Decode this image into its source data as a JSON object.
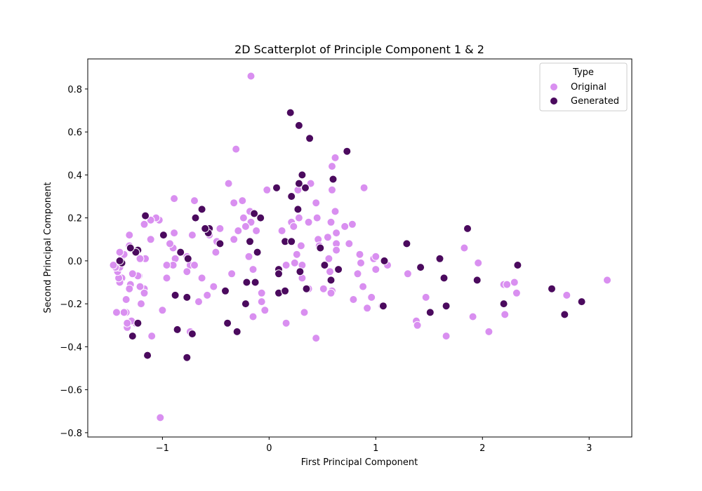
{
  "colors": {
    "original": "#d98ff0",
    "generated": "#4b0a5e"
  },
  "chart_data": {
    "type": "scatter",
    "title": "2D Scatterplot of Principle Component 1 & 2",
    "xlabel": "First Principal Component",
    "ylabel": "Second Principal Component",
    "xlim": [
      -1.7,
      3.4
    ],
    "ylim": [
      -0.82,
      0.94
    ],
    "xticks": [
      -1,
      0,
      1,
      2,
      3
    ],
    "xtick_labels": [
      "−1",
      "0",
      "1",
      "2",
      "3"
    ],
    "yticks": [
      -0.8,
      -0.6,
      -0.4,
      -0.2,
      0.0,
      0.2,
      0.4,
      0.6,
      0.8
    ],
    "ytick_labels": [
      "−0.8",
      "−0.6",
      "−0.4",
      "−0.2",
      "0.0",
      "0.2",
      "0.4",
      "0.6",
      "0.8"
    ],
    "grid": false,
    "legend": {
      "title": "Type",
      "placement": "top-right",
      "entries": [
        "Original",
        "Generated"
      ]
    },
    "series": [
      {
        "name": "Original",
        "points": [
          [
            -0.17,
            0.86
          ],
          [
            -0.31,
            0.52
          ],
          [
            -0.38,
            0.36
          ],
          [
            -0.33,
            0.27
          ],
          [
            -0.25,
            0.28
          ],
          [
            -0.18,
            0.23
          ],
          [
            -0.24,
            0.2
          ],
          [
            -0.17,
            0.18
          ],
          [
            -0.22,
            0.16
          ],
          [
            -0.12,
            0.14
          ],
          [
            -0.29,
            0.14
          ],
          [
            -0.33,
            0.1
          ],
          [
            -0.19,
            0.02
          ],
          [
            -0.15,
            -0.04
          ],
          [
            -0.07,
            -0.15
          ],
          [
            -0.07,
            -0.19
          ],
          [
            -0.15,
            -0.26
          ],
          [
            -0.04,
            -0.23
          ],
          [
            -0.35,
            -0.06
          ],
          [
            -0.46,
            0.15
          ],
          [
            -0.5,
            0.04
          ],
          [
            -0.52,
            -0.12
          ],
          [
            -0.58,
            -0.16
          ],
          [
            -0.63,
            -0.08
          ],
          [
            -0.66,
            -0.19
          ],
          [
            -0.49,
            0.09
          ],
          [
            -0.56,
            0.12
          ],
          [
            -0.7,
            0.28
          ],
          [
            -0.72,
            0.12
          ],
          [
            -0.74,
            -0.02
          ],
          [
            -0.7,
            -0.02
          ],
          [
            -0.77,
            0.02
          ],
          [
            -0.77,
            -0.05
          ],
          [
            -0.74,
            -0.33
          ],
          [
            -0.89,
            0.29
          ],
          [
            -0.89,
            0.13
          ],
          [
            -0.9,
            0.06
          ],
          [
            -0.88,
            0.01
          ],
          [
            -0.9,
            -0.02
          ],
          [
            -0.96,
            -0.02
          ],
          [
            -0.96,
            -0.08
          ],
          [
            -0.93,
            0.08
          ],
          [
            -1.0,
            -0.23
          ],
          [
            -1.02,
            -0.73
          ],
          [
            -1.03,
            0.19
          ],
          [
            -1.06,
            0.2
          ],
          [
            -1.11,
            0.19
          ],
          [
            -1.11,
            0.1
          ],
          [
            -1.1,
            -0.35
          ],
          [
            -1.16,
            0.01
          ],
          [
            -1.17,
            -0.13
          ],
          [
            -1.17,
            -0.15
          ],
          [
            -1.17,
            0.17
          ],
          [
            -1.2,
            -0.2
          ],
          [
            -1.21,
            -0.12
          ],
          [
            -1.22,
            -0.07
          ],
          [
            -1.21,
            0.01
          ],
          [
            -1.23,
            -0.07
          ],
          [
            -1.25,
            -0.29
          ],
          [
            -1.29,
            -0.28
          ],
          [
            -1.28,
            -0.06
          ],
          [
            -1.3,
            -0.11
          ],
          [
            -1.31,
            -0.13
          ],
          [
            -1.31,
            0.07
          ],
          [
            -1.31,
            0.12
          ],
          [
            -1.33,
            -0.31
          ],
          [
            -1.33,
            -0.29
          ],
          [
            -1.34,
            -0.24
          ],
          [
            -1.36,
            -0.24
          ],
          [
            -1.34,
            -0.18
          ],
          [
            -1.38,
            -0.08
          ],
          [
            -1.4,
            -0.1
          ],
          [
            -1.41,
            -0.08
          ],
          [
            -1.43,
            -0.24
          ],
          [
            -1.38,
            0.02
          ],
          [
            -1.36,
            0.03
          ],
          [
            -1.4,
            0.04
          ],
          [
            -1.42,
            -0.05
          ],
          [
            -1.4,
            -0.03
          ],
          [
            -1.44,
            -0.03
          ],
          [
            -1.46,
            -0.02
          ],
          [
            -0.02,
            0.33
          ],
          [
            0.12,
            0.14
          ],
          [
            0.16,
            -0.02
          ],
          [
            0.16,
            -0.29
          ],
          [
            0.21,
            0.18
          ],
          [
            0.23,
            0.16
          ],
          [
            0.27,
            0.33
          ],
          [
            0.28,
            0.2
          ],
          [
            0.26,
            0.03
          ],
          [
            0.24,
            -0.01
          ],
          [
            0.3,
            0.07
          ],
          [
            0.31,
            -0.02
          ],
          [
            0.31,
            -0.08
          ],
          [
            0.33,
            -0.24
          ],
          [
            0.37,
            -0.13
          ],
          [
            0.37,
            0.18
          ],
          [
            0.39,
            0.36
          ],
          [
            0.44,
            0.27
          ],
          [
            0.45,
            0.2
          ],
          [
            0.46,
            0.1
          ],
          [
            0.47,
            0.07
          ],
          [
            0.44,
            -0.36
          ],
          [
            0.51,
            -0.13
          ],
          [
            0.55,
            0.11
          ],
          [
            0.56,
            0.01
          ],
          [
            0.57,
            -0.05
          ],
          [
            0.59,
            -0.14
          ],
          [
            0.58,
            -0.15
          ],
          [
            0.58,
            0.18
          ],
          [
            0.59,
            0.44
          ],
          [
            0.59,
            0.33
          ],
          [
            0.62,
            0.48
          ],
          [
            0.62,
            0.23
          ],
          [
            0.63,
            0.13
          ],
          [
            0.63,
            0.08
          ],
          [
            0.63,
            0.05
          ],
          [
            0.71,
            0.16
          ],
          [
            0.75,
            0.08
          ],
          [
            0.78,
            0.17
          ],
          [
            0.79,
            -0.18
          ],
          [
            0.83,
            -0.06
          ],
          [
            0.85,
            0.03
          ],
          [
            0.86,
            -0.01
          ],
          [
            0.88,
            -0.12
          ],
          [
            0.89,
            0.34
          ],
          [
            0.92,
            -0.22
          ],
          [
            0.96,
            -0.17
          ],
          [
            0.98,
            0.01
          ],
          [
            1.0,
            0.02
          ],
          [
            1.0,
            -0.04
          ],
          [
            1.06,
            -0.21
          ],
          [
            1.11,
            -0.02
          ],
          [
            1.3,
            -0.06
          ],
          [
            1.38,
            -0.28
          ],
          [
            1.39,
            -0.3
          ],
          [
            1.47,
            -0.17
          ],
          [
            1.66,
            -0.35
          ],
          [
            1.83,
            0.06
          ],
          [
            1.91,
            -0.26
          ],
          [
            1.96,
            -0.01
          ],
          [
            2.06,
            -0.33
          ],
          [
            2.2,
            -0.11
          ],
          [
            2.21,
            -0.25
          ],
          [
            2.23,
            -0.11
          ],
          [
            2.3,
            -0.1
          ],
          [
            2.32,
            -0.15
          ],
          [
            2.79,
            -0.16
          ],
          [
            3.17,
            -0.09
          ]
        ]
      },
      {
        "name": "Generated",
        "points": [
          [
            0.2,
            0.69
          ],
          [
            0.28,
            0.63
          ],
          [
            0.38,
            0.57
          ],
          [
            0.73,
            0.51
          ],
          [
            0.31,
            0.4
          ],
          [
            0.28,
            0.36
          ],
          [
            0.34,
            0.34
          ],
          [
            0.07,
            0.34
          ],
          [
            0.21,
            0.3
          ],
          [
            0.27,
            0.24
          ],
          [
            0.6,
            0.38
          ],
          [
            -0.14,
            0.22
          ],
          [
            -0.08,
            0.2
          ],
          [
            -0.18,
            0.09
          ],
          [
            -0.11,
            0.04
          ],
          [
            -0.21,
            -0.1
          ],
          [
            -0.13,
            -0.1
          ],
          [
            -0.22,
            -0.2
          ],
          [
            -0.3,
            -0.33
          ],
          [
            -0.39,
            -0.29
          ],
          [
            -0.41,
            -0.14
          ],
          [
            -0.46,
            0.08
          ],
          [
            -0.56,
            0.15
          ],
          [
            -0.57,
            0.13
          ],
          [
            -0.6,
            0.15
          ],
          [
            -0.63,
            0.24
          ],
          [
            -0.69,
            0.2
          ],
          [
            -0.72,
            -0.34
          ],
          [
            -0.77,
            -0.17
          ],
          [
            -0.76,
            0.01
          ],
          [
            -0.77,
            -0.45
          ],
          [
            -0.83,
            0.04
          ],
          [
            -0.86,
            -0.32
          ],
          [
            -0.88,
            -0.16
          ],
          [
            -0.99,
            0.12
          ],
          [
            -1.14,
            -0.44
          ],
          [
            -1.16,
            0.21
          ],
          [
            -1.23,
            0.05
          ],
          [
            -1.25,
            0.04
          ],
          [
            -1.3,
            0.06
          ],
          [
            -1.23,
            -0.29
          ],
          [
            -1.28,
            -0.35
          ],
          [
            -1.38,
            -0.01
          ],
          [
            -1.4,
            0.0
          ],
          [
            0.09,
            -0.04
          ],
          [
            0.09,
            -0.06
          ],
          [
            0.09,
            -0.15
          ],
          [
            0.15,
            -0.14
          ],
          [
            0.15,
            0.09
          ],
          [
            0.21,
            0.09
          ],
          [
            0.29,
            -0.05
          ],
          [
            0.35,
            -0.13
          ],
          [
            0.48,
            0.06
          ],
          [
            0.52,
            -0.02
          ],
          [
            0.58,
            -0.09
          ],
          [
            0.65,
            -0.04
          ],
          [
            1.07,
            -0.21
          ],
          [
            1.08,
            0.0
          ],
          [
            1.29,
            0.08
          ],
          [
            1.42,
            -0.03
          ],
          [
            1.51,
            -0.24
          ],
          [
            1.6,
            0.01
          ],
          [
            1.64,
            -0.08
          ],
          [
            1.66,
            -0.21
          ],
          [
            1.86,
            0.15
          ],
          [
            1.95,
            -0.09
          ],
          [
            2.2,
            -0.2
          ],
          [
            2.33,
            -0.02
          ],
          [
            2.65,
            -0.13
          ],
          [
            2.77,
            -0.25
          ],
          [
            2.93,
            -0.19
          ]
        ]
      }
    ]
  }
}
